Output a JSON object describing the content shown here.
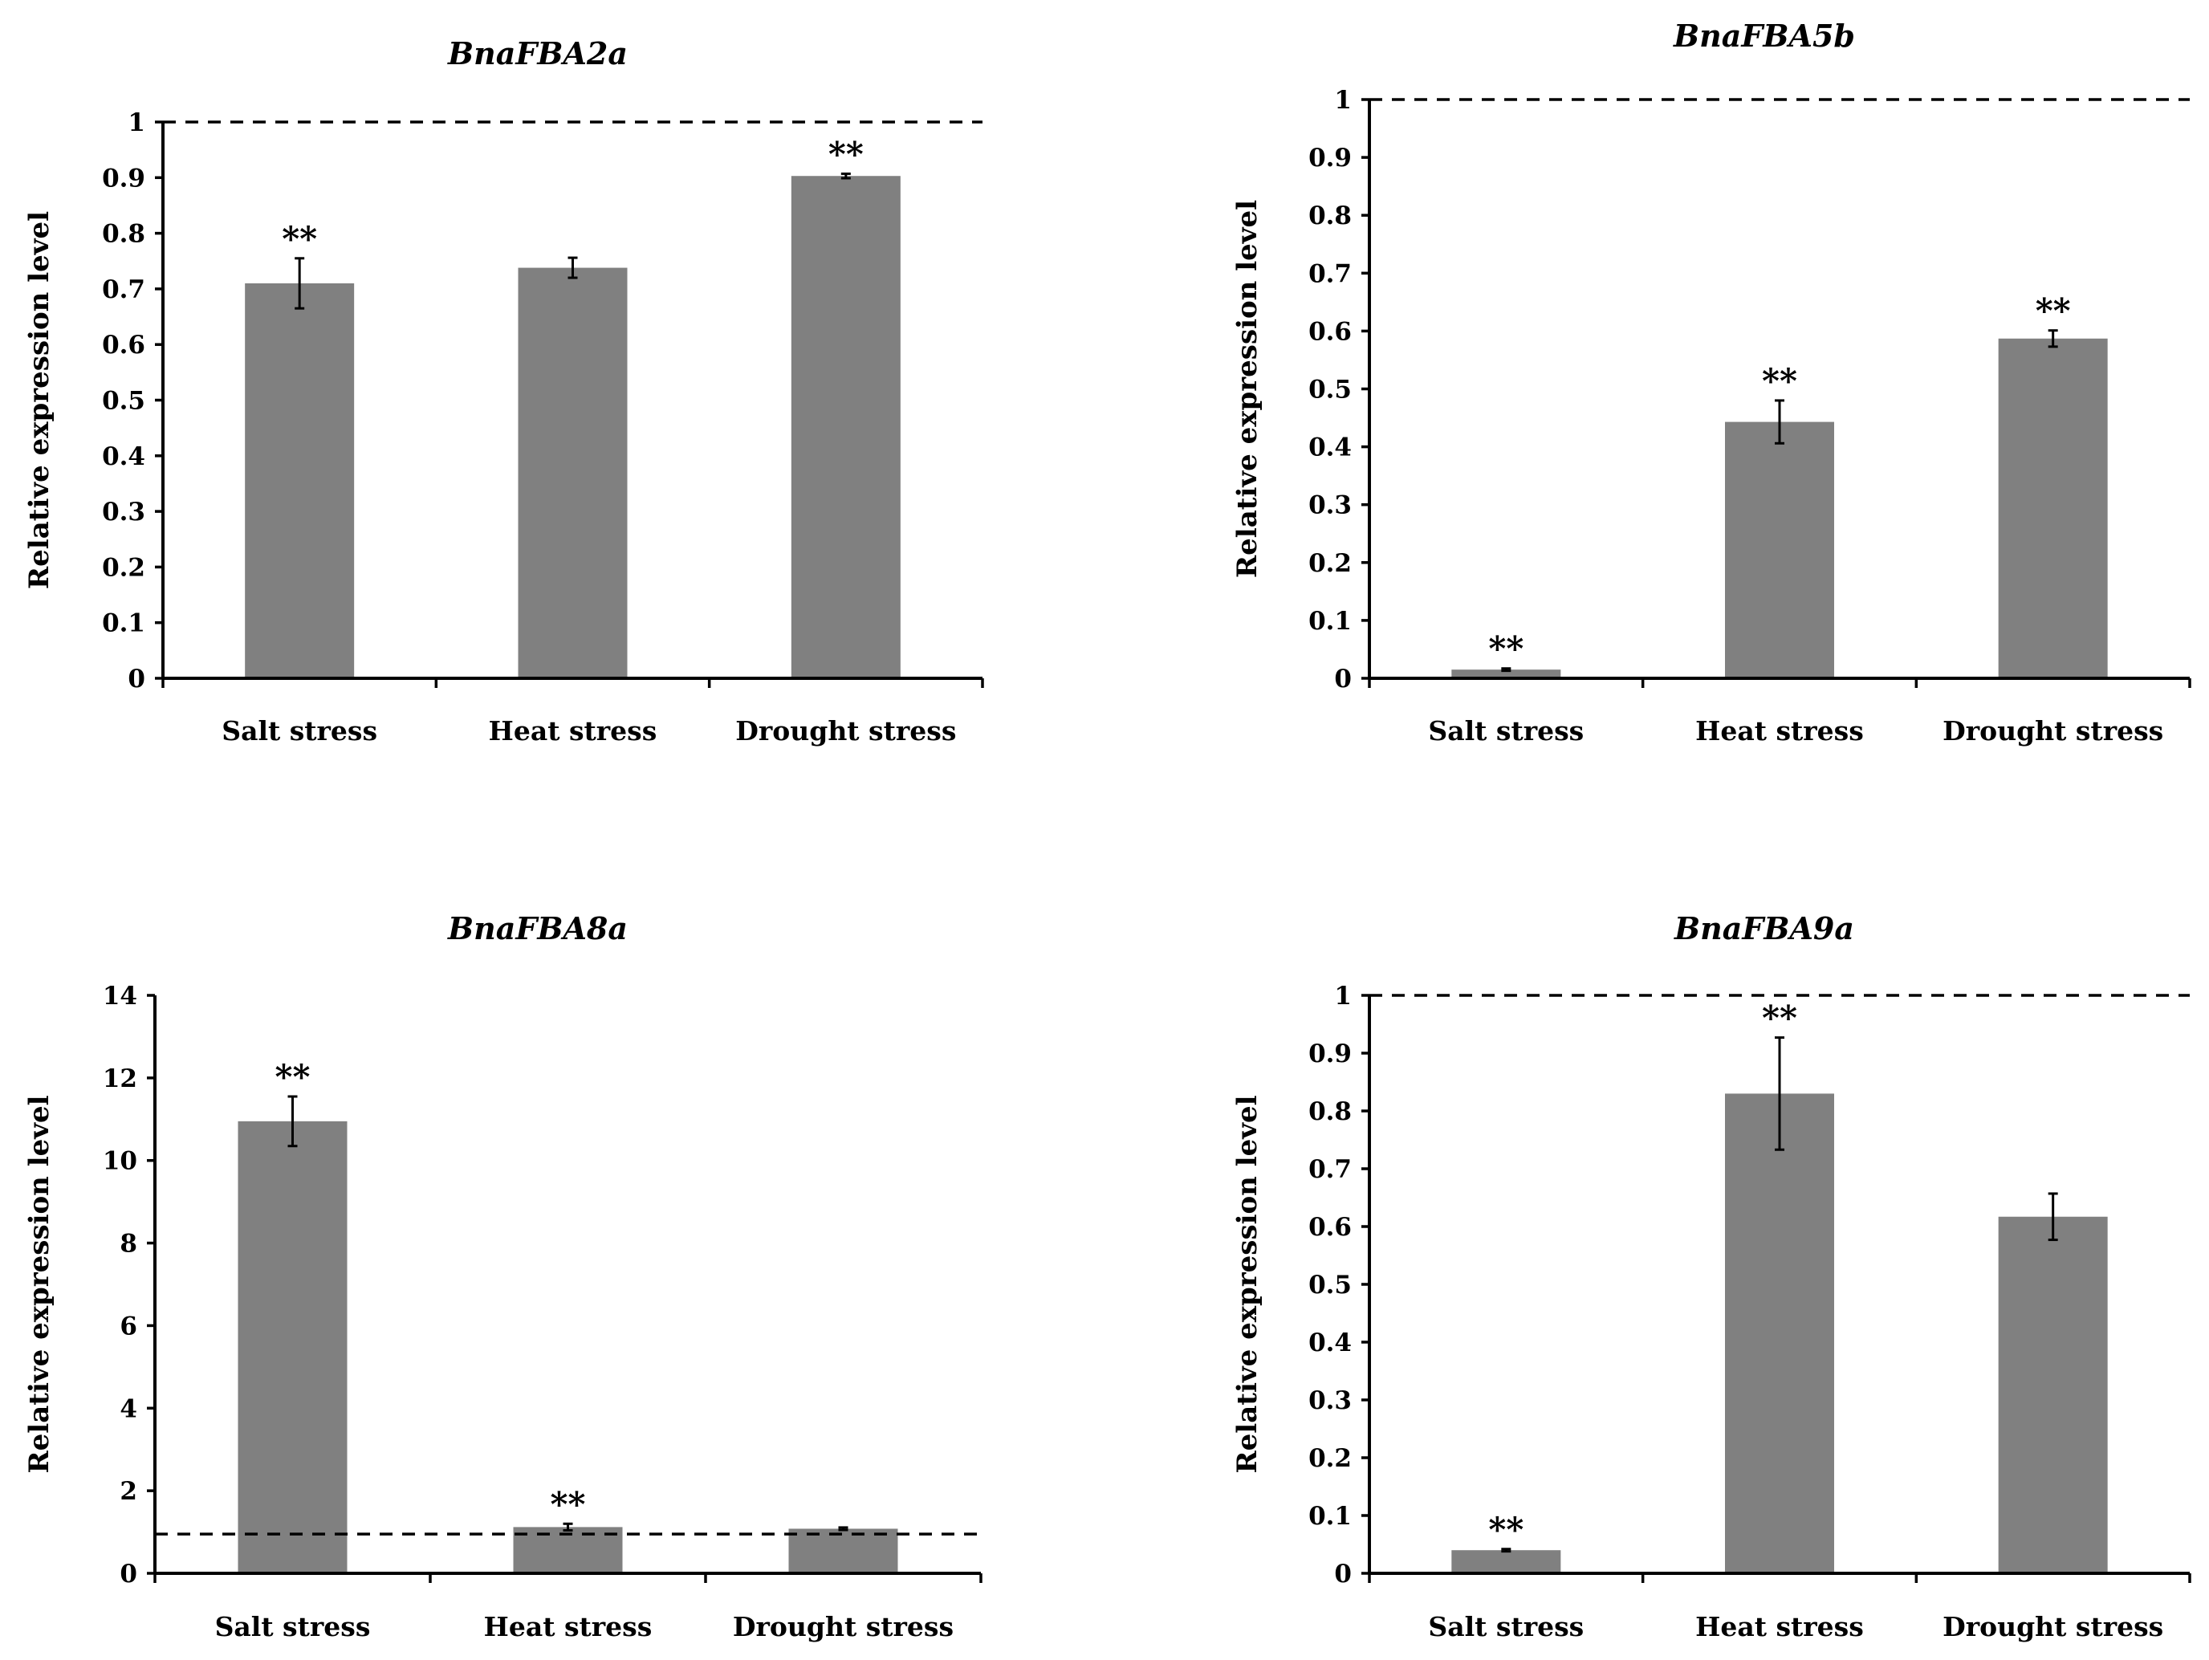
{
  "colors": {
    "bar": "#808080",
    "axis": "#000000",
    "background": "#ffffff"
  },
  "chart_data": [
    {
      "type": "bar",
      "title": "BnaFBA2a",
      "xlabel": "",
      "ylabel": "Relative expression level",
      "categories": [
        "Salt stress",
        "Heat stress",
        "Drought stress"
      ],
      "values": [
        0.71,
        0.738,
        0.903
      ],
      "errors": [
        0.045,
        0.018,
        0.004
      ],
      "significance": [
        "**",
        "",
        "**"
      ],
      "ylim": [
        0,
        1
      ],
      "yticks": [
        0,
        0.1,
        0.2,
        0.3,
        0.4,
        0.5,
        0.6,
        0.7,
        0.8,
        0.9,
        1
      ],
      "ytick_labels": [
        "0",
        "0.1",
        "0.2",
        "0.3",
        "0.4",
        "0.5",
        "0.6",
        "0.7",
        "0.8",
        "0.9",
        "1"
      ],
      "reference_line": 1,
      "grid": false
    },
    {
      "type": "bar",
      "title": "BnaFBA5b",
      "xlabel": "",
      "ylabel": "Relative expression level",
      "categories": [
        "Salt stress",
        "Heat stress",
        "Drought stress"
      ],
      "values": [
        0.015,
        0.443,
        0.587
      ],
      "errors": [
        0.002,
        0.037,
        0.014
      ],
      "significance": [
        "**",
        "**",
        "**"
      ],
      "ylim": [
        0,
        1
      ],
      "yticks": [
        0,
        0.1,
        0.2,
        0.3,
        0.4,
        0.5,
        0.6,
        0.7,
        0.8,
        0.9,
        1
      ],
      "ytick_labels": [
        "0",
        "0.1",
        "0.2",
        "0.3",
        "0.4",
        "0.5",
        "0.6",
        "0.7",
        "0.8",
        "0.9",
        "1"
      ],
      "reference_line": 1,
      "grid": false
    },
    {
      "type": "bar",
      "title": "BnaFBA8a",
      "xlabel": "",
      "ylabel": "Relative expression level",
      "categories": [
        "Salt stress",
        "Heat stress",
        "Drought stress"
      ],
      "values": [
        10.95,
        1.12,
        1.08
      ],
      "errors": [
        0.6,
        0.08,
        0.03
      ],
      "significance": [
        "**",
        "**",
        ""
      ],
      "ylim": [
        0,
        14
      ],
      "yticks": [
        0,
        2,
        4,
        6,
        8,
        10,
        12,
        14
      ],
      "ytick_labels": [
        "0",
        "2",
        "4",
        "6",
        "8",
        "10",
        "12",
        "14"
      ],
      "reference_line": 0.95,
      "grid": false
    },
    {
      "type": "bar",
      "title": "BnaFBA9a",
      "xlabel": "",
      "ylabel": "Relative expression level",
      "categories": [
        "Salt stress",
        "Heat stress",
        "Drought stress"
      ],
      "values": [
        0.04,
        0.83,
        0.617
      ],
      "errors": [
        0.002,
        0.097,
        0.04
      ],
      "significance": [
        "**",
        "**",
        ""
      ],
      "ylim": [
        0,
        1
      ],
      "yticks": [
        0,
        0.1,
        0.2,
        0.3,
        0.4,
        0.5,
        0.6,
        0.7,
        0.8,
        0.9,
        1
      ],
      "ytick_labels": [
        "0",
        "0.1",
        "0.2",
        "0.3",
        "0.4",
        "0.5",
        "0.6",
        "0.7",
        "0.8",
        "0.9",
        "1"
      ],
      "reference_line": 1,
      "grid": false
    }
  ]
}
